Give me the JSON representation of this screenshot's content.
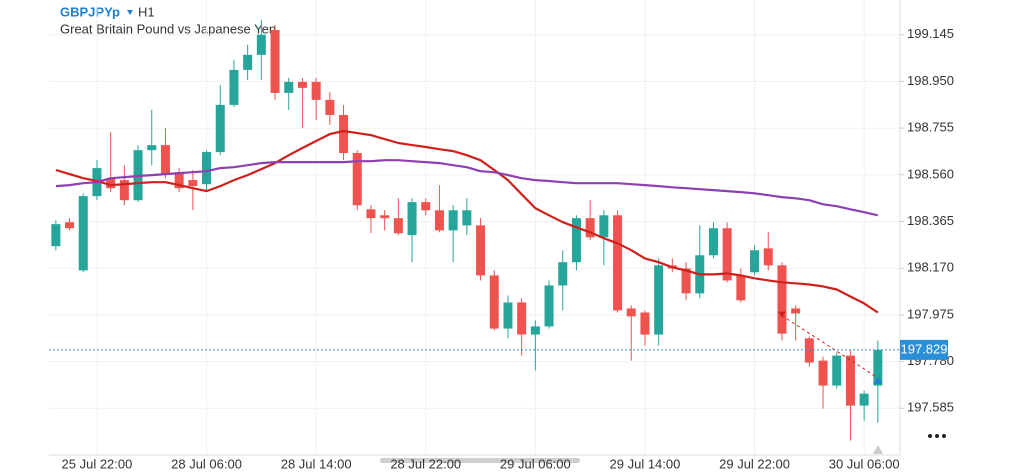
{
  "chart_data": {
    "type": "candlestick",
    "title": "GBPJPYp",
    "timeframe": "H1",
    "subtitle": "Great Britain Pound vs Japanese Yen",
    "categories": [
      null,
      null,
      null,
      "25 Jul 22:00",
      null,
      null,
      null,
      null,
      null,
      null,
      null,
      "28 Jul 06:00",
      null,
      null,
      null,
      null,
      null,
      null,
      null,
      "28 Jul 14:00",
      null,
      null,
      null,
      null,
      null,
      null,
      null,
      "28 Jul 22:00",
      null,
      null,
      null,
      null,
      null,
      null,
      null,
      "29 Jul 06:00",
      null,
      null,
      null,
      null,
      null,
      null,
      null,
      "29 Jul 14:00",
      null,
      null,
      null,
      null,
      null,
      null,
      null,
      "29 Jul 22:00",
      null,
      null,
      null,
      null,
      null,
      null,
      null,
      "30 Jul 06:00",
      null
    ],
    "open": [
      198.262,
      198.362,
      198.161,
      198.471,
      198.546,
      198.538,
      198.454,
      198.663,
      198.684,
      198.571,
      198.538,
      198.521,
      198.655,
      198.852,
      198.998,
      199.061,
      199.165,
      198.902,
      198.948,
      198.948,
      198.873,
      198.81,
      198.651,
      198.416,
      198.391,
      198.379,
      198.308,
      198.446,
      198.412,
      198.328,
      198.349,
      198.349,
      198.14,
      197.918,
      198.027,
      197.893,
      197.927,
      198.098,
      198.195,
      198.379,
      198.299,
      198.391,
      198.002,
      197.985,
      197.893,
      198.182,
      198.169,
      198.065,
      198.224,
      198.337,
      198.14,
      198.153,
      198.253,
      198.182,
      198.002,
      197.877,
      197.784,
      197.68,
      197.805,
      197.596,
      197.68
    ],
    "high": [
      198.37,
      198.379,
      198.483,
      198.621,
      198.739,
      198.6,
      198.684,
      198.831,
      198.755,
      198.588,
      198.58,
      198.663,
      198.935,
      199.04,
      199.103,
      199.207,
      199.186,
      198.965,
      198.965,
      198.965,
      198.906,
      198.852,
      198.663,
      198.433,
      198.412,
      198.462,
      198.462,
      198.462,
      198.517,
      198.433,
      198.462,
      198.379,
      198.161,
      198.056,
      198.044,
      197.952,
      198.119,
      198.245,
      198.391,
      198.454,
      198.412,
      198.412,
      198.015,
      197.994,
      198.211,
      198.211,
      198.195,
      198.349,
      198.362,
      198.362,
      198.169,
      198.266,
      198.32,
      198.195,
      198.015,
      197.885,
      197.801,
      197.818,
      197.826,
      197.659,
      197.868
    ],
    "low": [
      198.245,
      198.328,
      198.153,
      198.454,
      198.488,
      198.433,
      198.446,
      198.6,
      198.546,
      198.488,
      198.412,
      198.496,
      198.642,
      198.843,
      198.956,
      198.956,
      198.873,
      198.831,
      198.755,
      198.789,
      198.768,
      198.621,
      198.412,
      198.316,
      198.328,
      198.308,
      198.195,
      198.391,
      198.32,
      198.195,
      198.308,
      198.119,
      197.91,
      197.877,
      197.805,
      197.743,
      197.918,
      197.994,
      198.161,
      198.287,
      198.182,
      197.985,
      197.784,
      197.847,
      197.847,
      198.153,
      198.036,
      198.044,
      198.211,
      198.111,
      198.027,
      198.14,
      198.161,
      197.868,
      197.868,
      197.759,
      197.584,
      197.667,
      197.45,
      197.533,
      197.525
    ],
    "close": [
      198.354,
      198.337,
      198.471,
      198.588,
      198.504,
      198.454,
      198.663,
      198.684,
      198.559,
      198.504,
      198.513,
      198.655,
      198.852,
      198.998,
      199.061,
      199.145,
      198.902,
      198.948,
      198.923,
      198.873,
      198.81,
      198.651,
      198.433,
      198.379,
      198.379,
      198.316,
      198.446,
      198.412,
      198.328,
      198.412,
      198.412,
      198.14,
      197.918,
      198.027,
      197.893,
      197.927,
      198.098,
      198.195,
      198.379,
      198.299,
      198.391,
      197.994,
      197.969,
      197.893,
      198.182,
      198.169,
      198.065,
      198.224,
      198.337,
      198.119,
      198.036,
      198.245,
      198.182,
      197.897,
      197.981,
      197.776,
      197.68,
      197.805,
      197.596,
      197.646,
      197.829
    ],
    "up_color": "#26a69a",
    "down_color": "#ef5350",
    "lines": [
      {
        "color": "#d0201c",
        "values": [
          198.58,
          198.563,
          198.546,
          198.534,
          198.517,
          198.521,
          198.525,
          198.529,
          198.529,
          198.517,
          198.504,
          198.492,
          198.513,
          198.538,
          198.559,
          198.584,
          198.609,
          198.642,
          198.672,
          198.701,
          198.73,
          198.743,
          198.734,
          198.726,
          198.709,
          198.693,
          198.684,
          198.676,
          198.667,
          198.659,
          198.642,
          198.621,
          198.58,
          198.538,
          198.479,
          198.421,
          198.391,
          198.362,
          198.341,
          198.32,
          198.295,
          198.274,
          198.245,
          198.211,
          198.195,
          198.174,
          198.161,
          198.144,
          198.144,
          198.148,
          198.14,
          198.128,
          198.119,
          198.111,
          198.107,
          198.102,
          198.094,
          198.081,
          198.052,
          198.023,
          197.985
        ]
      },
      {
        "color": "#8e3fb0",
        "values": [
          198.513,
          198.517,
          198.525,
          198.529,
          198.546,
          198.55,
          198.555,
          198.559,
          198.563,
          198.567,
          198.571,
          198.575,
          198.588,
          198.592,
          198.6,
          198.609,
          198.613,
          198.613,
          198.613,
          198.613,
          198.613,
          198.613,
          198.617,
          198.617,
          198.621,
          198.621,
          198.617,
          198.613,
          198.609,
          198.6,
          198.592,
          198.575,
          198.571,
          198.559,
          198.546,
          198.538,
          198.534,
          198.529,
          198.525,
          198.525,
          198.525,
          198.525,
          198.521,
          198.517,
          198.513,
          198.508,
          198.504,
          198.5,
          198.496,
          198.492,
          198.488,
          198.483,
          198.475,
          198.467,
          198.462,
          198.454,
          198.437,
          198.429,
          198.416,
          198.404,
          198.391
        ]
      }
    ],
    "current_price": 197.829,
    "current_price_color": "#2a8fd6",
    "ylim": [
      197.39,
      199.29
    ],
    "yticks": [
      199.145,
      {
        "value": 198.95,
        "label": "198.950"
      },
      198.755,
      {
        "value": 198.56,
        "label": "198.560"
      },
      198.365,
      {
        "value": 198.17,
        "label": "198.170"
      },
      197.975,
      {
        "value": 197.78,
        "label": "197.780"
      },
      197.585
    ],
    "grid": true
  }
}
